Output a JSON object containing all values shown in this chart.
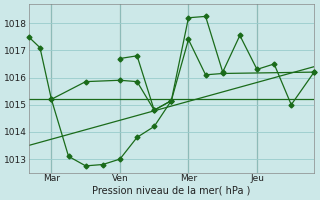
{
  "background_color": "#cce8e8",
  "grid_color": "#99cccc",
  "line_color": "#1a6b1a",
  "xlabel": "Pression niveau de la mer( hPa )",
  "xlim": [
    0,
    100
  ],
  "ylim": [
    1012.5,
    1018.7
  ],
  "yticks": [
    1013,
    1014,
    1015,
    1016,
    1017,
    1018
  ],
  "xtick_positions": [
    8,
    32,
    56,
    80
  ],
  "xtick_labels": [
    "Mar",
    "Ven",
    "Mer",
    "Jeu"
  ],
  "vline_positions": [
    8,
    32,
    56,
    80
  ],
  "trend_x": [
    0,
    100
  ],
  "trend_y": [
    1013.5,
    1016.4
  ],
  "series_flat_x": [
    0,
    8,
    56,
    68,
    100
  ],
  "series_flat_y": [
    1015.2,
    1015.2,
    1015.2,
    1015.2,
    1015.2
  ],
  "series_high_x": [
    0,
    4,
    8,
    20,
    32,
    38,
    44,
    50,
    56,
    62,
    68,
    100
  ],
  "series_high_y": [
    1017.5,
    1017.1,
    1015.2,
    1015.85,
    1015.9,
    1015.85,
    1014.8,
    1015.15,
    1017.4,
    1016.1,
    1016.15,
    1016.2
  ],
  "series_peak_x": [
    32,
    38,
    44,
    50,
    56,
    62,
    68,
    74,
    80,
    86,
    92,
    100
  ],
  "series_peak_y": [
    1016.7,
    1016.8,
    1014.8,
    1015.15,
    1018.2,
    1018.25,
    1016.2,
    1017.55,
    1016.3,
    1016.5,
    1015.0,
    1016.2
  ],
  "series_low_x": [
    8,
    14,
    20,
    26,
    32,
    38,
    44,
    50
  ],
  "series_low_y": [
    1015.2,
    1013.1,
    1012.75,
    1012.8,
    1013.0,
    1013.8,
    1014.2,
    1015.15
  ],
  "marker_size": 2.5
}
